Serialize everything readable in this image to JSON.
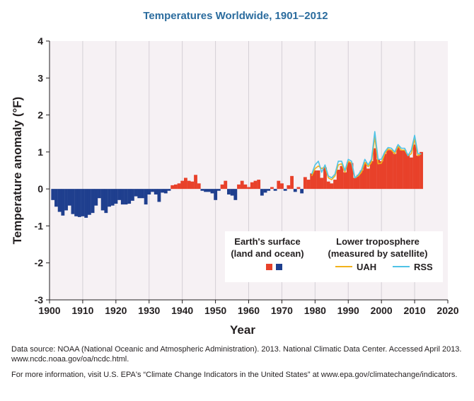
{
  "chart_data": {
    "type": "bar",
    "title": "Temperatures Worldwide, 1901–2012",
    "xlabel": "Year",
    "ylabel": "Temperature anomaly (°F)",
    "xlim": [
      1900,
      2020
    ],
    "ylim": [
      -3,
      4
    ],
    "xticks": [
      1900,
      1910,
      1920,
      1930,
      1940,
      1950,
      1960,
      1970,
      1980,
      1990,
      2000,
      2010,
      2020
    ],
    "yticks": [
      -3,
      -2,
      -1,
      0,
      1,
      2,
      3,
      4
    ],
    "colors": {
      "positive": "#e8412a",
      "negative": "#1f3f8e",
      "uah": "#f2b21c",
      "rss": "#4fc3e6",
      "plot_bg": "#f6f1f4"
    },
    "surface": {
      "name": "Earth's surface (land and ocean)",
      "start_year": 1901,
      "values": [
        -0.3,
        -0.48,
        -0.62,
        -0.72,
        -0.58,
        -0.45,
        -0.68,
        -0.74,
        -0.76,
        -0.74,
        -0.78,
        -0.7,
        -0.65,
        -0.45,
        -0.25,
        -0.58,
        -0.65,
        -0.48,
        -0.45,
        -0.4,
        -0.3,
        -0.42,
        -0.42,
        -0.4,
        -0.32,
        -0.2,
        -0.25,
        -0.25,
        -0.42,
        -0.15,
        -0.08,
        -0.15,
        -0.35,
        -0.1,
        -0.12,
        -0.05,
        0.1,
        0.12,
        0.15,
        0.22,
        0.3,
        0.22,
        0.2,
        0.38,
        0.15,
        -0.05,
        -0.08,
        -0.08,
        -0.12,
        -0.3,
        -0.05,
        0.12,
        0.22,
        -0.15,
        -0.18,
        -0.3,
        0.12,
        0.22,
        0.12,
        0.05,
        0.18,
        0.22,
        0.25,
        -0.18,
        -0.1,
        -0.05,
        0.05,
        -0.05,
        0.22,
        0.15,
        -0.05,
        0.1,
        0.35,
        -0.08,
        0.05,
        -0.12,
        0.32,
        0.25,
        0.42,
        0.5,
        0.5,
        0.3,
        0.58,
        0.2,
        0.15,
        0.25,
        0.52,
        0.62,
        0.45,
        0.72,
        0.7,
        0.3,
        0.38,
        0.5,
        0.72,
        0.55,
        0.75,
        1.1,
        0.8,
        0.75,
        0.95,
        1.05,
        1.05,
        0.95,
        1.15,
        1.05,
        1.05,
        0.95,
        0.85,
        1.2,
        0.9,
        1.0
      ]
    },
    "uah": {
      "name": "UAH",
      "start_year": 1979,
      "values": [
        0.35,
        0.55,
        0.62,
        0.55,
        0.6,
        0.3,
        0.25,
        0.35,
        0.65,
        0.68,
        0.45,
        0.75,
        0.7,
        0.3,
        0.35,
        0.45,
        0.72,
        0.6,
        0.72,
        1.4,
        0.68,
        0.7,
        0.95,
        1.08,
        1.05,
        0.95,
        1.15,
        1.05,
        1.05,
        0.9,
        0.95,
        1.35,
        0.9,
        0.95
      ]
    },
    "rss": {
      "name": "RSS",
      "start_year": 1979,
      "values": [
        0.4,
        0.65,
        0.75,
        0.45,
        0.65,
        0.35,
        0.3,
        0.4,
        0.75,
        0.75,
        0.5,
        0.8,
        0.75,
        0.3,
        0.38,
        0.52,
        0.8,
        0.65,
        0.8,
        1.55,
        0.8,
        0.8,
        1.0,
        1.12,
        1.1,
        1.0,
        1.2,
        1.1,
        1.1,
        0.9,
        1.05,
        1.45,
        0.95,
        0.95
      ]
    },
    "legend": {
      "surface_line1": "Earth's surface",
      "surface_line2": "(land and ocean)",
      "satellite_line1": "Lower troposphere",
      "satellite_line2": "(measured by satellite)",
      "uah_label": "UAH",
      "rss_label": "RSS"
    }
  },
  "notes": {
    "source": "Data source: NOAA (National Oceanic and Atmospheric Administration). 2013. National Climatic Data Center. Accessed April 2013. www.ncdc.noaa.gov/oa/ncdc.html.",
    "more_info": "For more information, visit U.S. EPA's “Climate Change Indicators in the United States” at www.epa.gov/climatechange/indicators."
  }
}
